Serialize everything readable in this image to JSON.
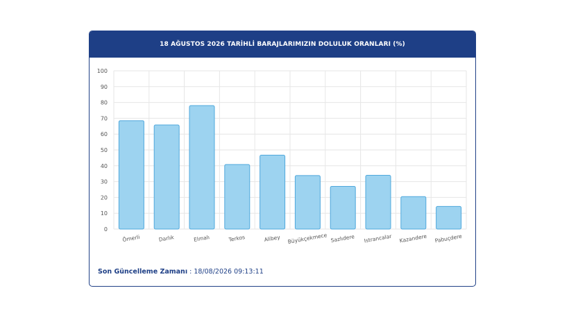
{
  "header": {
    "title": "18 AĞUSTOS 2026 TARİHLİ BARAJLARIMIZIN DOLULUK ORANLARI (%)"
  },
  "footer": {
    "label": "Son Güncelleme Zamanı",
    "separator": " : ",
    "timestamp": "18/08/2026 09:13:11"
  },
  "colors": {
    "header_bg": "#1e3f86",
    "bar_fill": "#9dd3f0",
    "bar_stroke": "#4fa8dc",
    "grid": "#e6e6e6",
    "tick_text": "#555555"
  },
  "chart_data": {
    "type": "bar",
    "title": "18 AĞUSTOS 2026 TARİHLİ BARAJLARIMIZIN DOLULUK ORANLARI (%)",
    "categories": [
      "Ömerli",
      "Darlık",
      "Elmalı",
      "Terkos",
      "Alibey",
      "Büyükçekmece",
      "Sazlıdere",
      "Istrancalar",
      "Kazandere",
      "Pabuçdere"
    ],
    "values": [
      68.5,
      65.8,
      78,
      40.8,
      46.7,
      33.8,
      27,
      34,
      20.5,
      14.3
    ],
    "ylim": [
      0,
      100
    ],
    "yticks": [
      0,
      10,
      20,
      30,
      40,
      50,
      60,
      70,
      80,
      90,
      100
    ],
    "grid": true,
    "legend": "none"
  }
}
